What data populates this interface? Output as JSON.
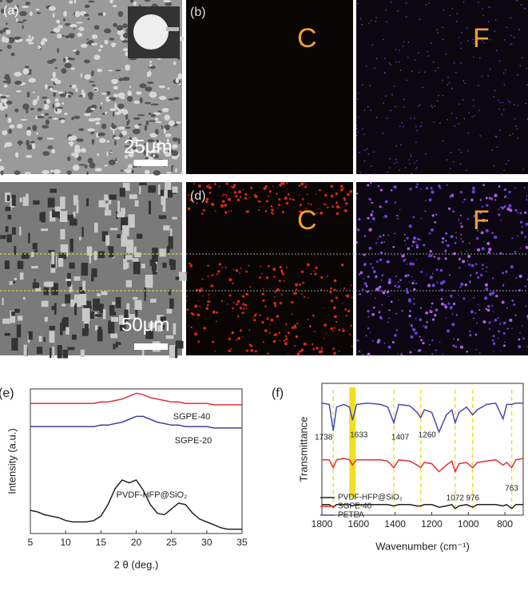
{
  "panels": {
    "a": {
      "label": "(a)",
      "scale": "25μm"
    },
    "b": {
      "label": "(b)",
      "maps": [
        "C",
        "F"
      ]
    },
    "c": {
      "scale": "50μm"
    },
    "d": {
      "label": "(d)",
      "maps": [
        "C",
        "F"
      ]
    }
  },
  "chart_data": [
    {
      "type": "line",
      "panel_label": "(e)",
      "xlabel": "2 θ (deg.)",
      "ylabel": "Intensity (a.u.)",
      "x": [
        5,
        6,
        7,
        8,
        9,
        10,
        11,
        12,
        13,
        14,
        15,
        16,
        17,
        18,
        19,
        20,
        21,
        22,
        23,
        24,
        25,
        26,
        27,
        28,
        29,
        30,
        31,
        32,
        33,
        34,
        35
      ],
      "series": [
        {
          "name": "SGPE-40",
          "color": "#e0303a",
          "values": [
            90,
            90,
            90,
            90,
            90,
            90,
            90,
            90,
            90,
            90,
            91,
            91,
            92,
            93,
            95,
            97,
            96,
            94,
            93,
            92,
            91,
            91,
            90,
            90,
            90,
            90,
            89,
            89,
            89,
            89,
            89
          ]
        },
        {
          "name": "SGPE-20",
          "color": "#4040a0",
          "values": [
            74,
            74,
            74,
            74,
            74,
            74,
            74,
            74,
            74,
            74,
            75,
            75,
            76,
            77,
            79,
            81,
            81,
            79,
            77,
            76,
            75,
            75,
            74,
            74,
            74,
            74,
            73,
            73,
            73,
            73,
            73
          ]
        },
        {
          "name": "PVDF-HFP@SiO₂",
          "color": "#222222",
          "values": [
            16,
            15,
            13,
            12,
            11,
            9,
            8,
            8,
            8,
            9,
            12,
            20,
            31,
            37,
            35,
            37,
            30,
            20,
            14,
            13,
            17,
            21,
            20,
            14,
            10,
            8,
            6,
            4,
            3,
            3,
            3
          ]
        }
      ],
      "xlim": [
        5,
        35
      ],
      "xticks": [
        5,
        10,
        15,
        20,
        25,
        30,
        35
      ],
      "ylim": [
        0,
        100
      ]
    },
    {
      "type": "line",
      "panel_label": "(f)",
      "xlabel": "Wavenumber (cm⁻¹)",
      "ylabel": "Transmittance",
      "x": [
        1800,
        1760,
        1738,
        1720,
        1680,
        1650,
        1633,
        1610,
        1550,
        1480,
        1440,
        1407,
        1380,
        1320,
        1280,
        1260,
        1240,
        1200,
        1160,
        1120,
        1090,
        1072,
        1050,
        1010,
        976,
        950,
        900,
        850,
        810,
        790,
        763,
        740,
        700
      ],
      "series": [
        {
          "name": "PVDF-HFP@SiO₂",
          "color": "#222222",
          "values": [
            8,
            8,
            6,
            8,
            8,
            8,
            7,
            8,
            8,
            8,
            8,
            7,
            8,
            8,
            7,
            7,
            8,
            8,
            6,
            7,
            8,
            5,
            7,
            8,
            6,
            8,
            8,
            8,
            7,
            8,
            5,
            8,
            8
          ]
        },
        {
          "name": "SGPE-40",
          "color": "#e0303a",
          "values": [
            42,
            42,
            36,
            42,
            43,
            42,
            38,
            42,
            42,
            42,
            41,
            36,
            42,
            41,
            38,
            36,
            40,
            39,
            33,
            38,
            41,
            33,
            39,
            40,
            36,
            40,
            41,
            42,
            38,
            40,
            36,
            42,
            43
          ]
        },
        {
          "name": "PETEA",
          "color": "#4a4ab0",
          "values": [
            85,
            84,
            64,
            82,
            84,
            82,
            72,
            84,
            85,
            84,
            82,
            70,
            84,
            83,
            78,
            74,
            80,
            78,
            63,
            76,
            80,
            70,
            78,
            82,
            76,
            80,
            84,
            85,
            73,
            84,
            84,
            85,
            85
          ]
        }
      ],
      "annotations": [
        1738,
        1633,
        1407,
        1260,
        1072,
        976,
        763
      ],
      "annotation_color": "#f0e020",
      "highlight": 1,
      "xlim": [
        1800,
        700
      ],
      "xticks": [
        1800,
        1600,
        1400,
        1200,
        1000,
        800
      ],
      "ylim": [
        0,
        100
      ],
      "legend": "bottom-left"
    }
  ]
}
